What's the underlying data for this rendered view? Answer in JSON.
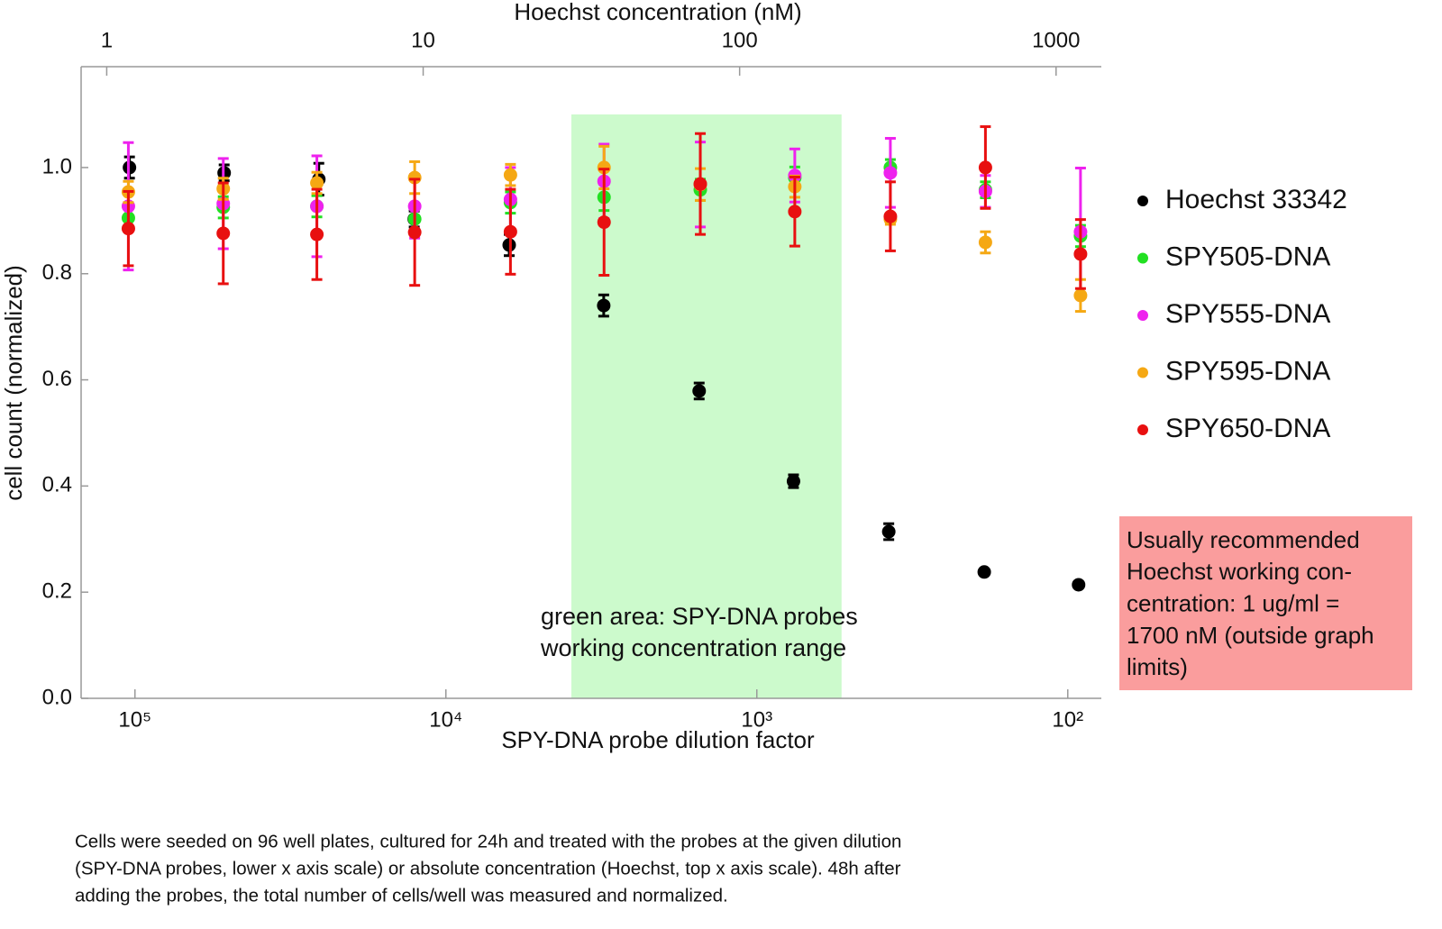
{
  "chart_data": {
    "type": "scatter",
    "title_top_axis": "Hoechst concentration (nM)",
    "xlabel": "SPY-DNA probe dilution factor",
    "ylabel": "cell count (normalized)",
    "xscale": "log",
    "x2scale": "log",
    "xlim": [
      149000,
      78
    ],
    "xticks": [
      {
        "value": 100000,
        "label": "10⁵"
      },
      {
        "value": 10000,
        "label": "10⁴"
      },
      {
        "value": 1000,
        "label": "10³"
      },
      {
        "value": 100,
        "label": "10²"
      }
    ],
    "x2lim": [
      0.83,
      1390
    ],
    "x2ticks": [
      1,
      10,
      100,
      1000
    ],
    "ylim": [
      0,
      1.19
    ],
    "yticks": [
      {
        "value": 0,
        "label": "0.0"
      },
      0.2,
      0.4,
      0.6,
      0.8,
      {
        "value": 1,
        "label": "1.0"
      }
    ],
    "x": [
      105000,
      52000,
      26000,
      12600,
      6200,
      3100,
      1520,
      755,
      372,
      184,
      91
    ],
    "series": [
      {
        "name": "Hoechst 33342",
        "color": "#000000",
        "axis": "x2",
        "x": [
          1.18,
          2.35,
          4.68,
          9.37,
          18.7,
          37.2,
          74.5,
          148,
          296,
          593,
          1178
        ],
        "values": [
          1.0,
          0.99,
          0.978,
          0.903,
          0.854,
          0.74,
          0.579,
          0.409,
          0.314,
          0.238,
          0.214
        ],
        "errors": [
          0.02,
          0.015,
          0.03,
          0.015,
          0.02,
          0.02,
          0.015,
          0.012,
          0.015,
          0.005,
          0.005
        ]
      },
      {
        "name": "SPY505-DNA",
        "color": "#22e022",
        "values": [
          0.905,
          0.925,
          0.927,
          0.903,
          0.934,
          0.944,
          0.958,
          0.981,
          1.0,
          0.958,
          0.871
        ],
        "errors": [
          0.02,
          0.02,
          0.02,
          0.02,
          0.02,
          0.025,
          0.02,
          0.02,
          0.015,
          0.015,
          0.02
        ]
      },
      {
        "name": "SPY555-DNA",
        "color": "#ee22ee",
        "values": [
          0.927,
          0.932,
          0.927,
          0.927,
          0.94,
          0.974,
          0.968,
          0.985,
          0.99,
          0.955,
          0.879
        ],
        "errors": [
          0.12,
          0.085,
          0.095,
          0.06,
          0.06,
          0.07,
          0.08,
          0.05,
          0.065,
          0.03,
          0.12
        ]
      },
      {
        "name": "SPY595-DNA",
        "color": "#f5a814",
        "values": [
          0.954,
          0.96,
          0.971,
          0.981,
          0.986,
          1.0,
          0.968,
          0.964,
          0.903,
          0.859,
          0.759
        ],
        "errors": [
          0.02,
          0.02,
          0.02,
          0.03,
          0.02,
          0.04,
          0.03,
          0.02,
          0.01,
          0.02,
          0.03
        ]
      },
      {
        "name": "SPY650-DNA",
        "color": "#e81010",
        "values": [
          0.885,
          0.876,
          0.874,
          0.878,
          0.879,
          0.897,
          0.969,
          0.917,
          0.908,
          1.0,
          0.837
        ],
        "errors": [
          0.07,
          0.095,
          0.085,
          0.1,
          0.08,
          0.1,
          0.095,
          0.065,
          0.065,
          0.077,
          0.065
        ]
      }
    ],
    "shaded_region": {
      "x": [
        3950,
        534
      ],
      "ylim": [
        0,
        1.1
      ],
      "color": "#ccfacc"
    },
    "annotation_green": [
      "green area: SPY-DNA probes",
      "working concentration range"
    ],
    "annotation_box": [
      "Usually recommended",
      "Hoechst working con-",
      "centration: 1 ug/ml =",
      "1700 nM (outside graph",
      "limits)"
    ],
    "caption": [
      "Cells were seeded on 96 well plates, cultured for 24h and treated with the probes at the given dilution",
      "(SPY-DNA probes, lower x axis scale) or absolute concentration (Hoechst, top x axis scale). 48h after",
      "adding the probes, the total number of cells/well was measured and normalized."
    ]
  }
}
